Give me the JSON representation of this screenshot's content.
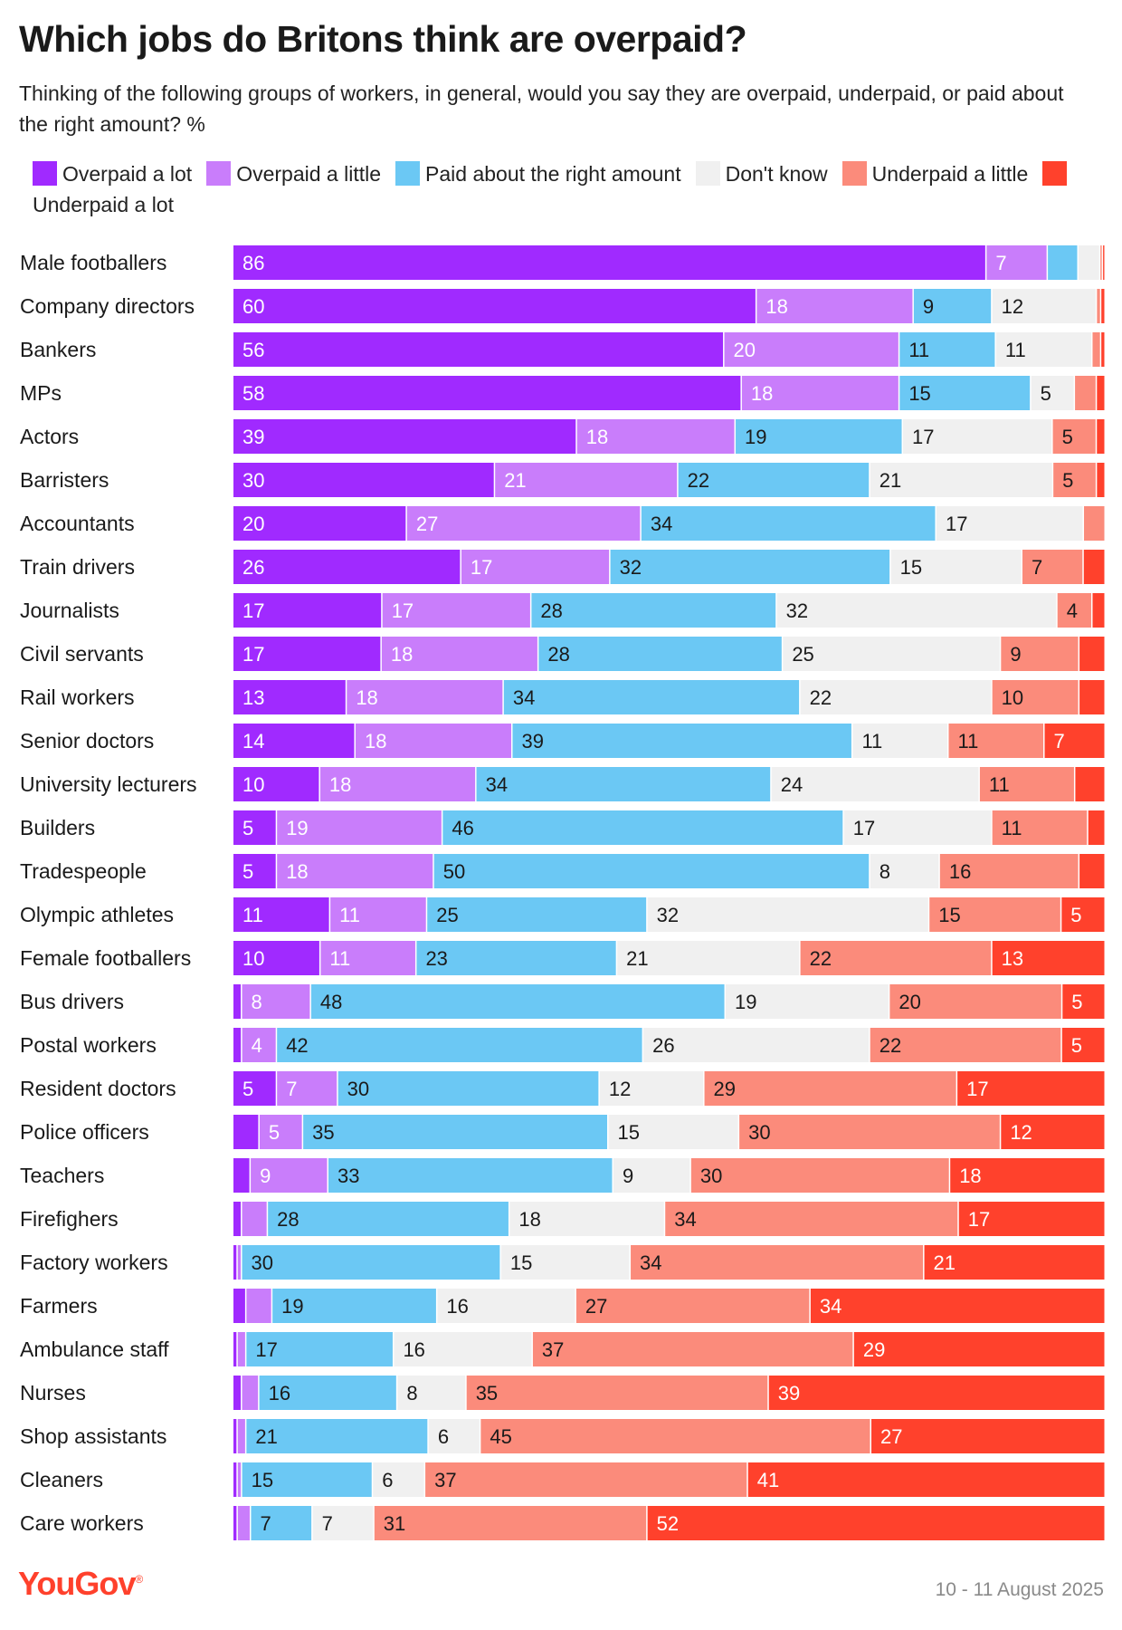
{
  "header": {
    "title": "Which jobs do Britons think are overpaid?",
    "subtitle": "Thinking of the following groups of workers, in general, would you say they are overpaid, underpaid, or paid about the right amount? %"
  },
  "footer": {
    "brand": "YouGov",
    "date": "10 - 11 August 2025"
  },
  "colors": {
    "overpaid_a_lot": "#a02aff",
    "overpaid_a_little": "#c97dfb",
    "right_amount": "#6bc8f4",
    "dont_know": "#f0f0f0",
    "underpaid_a_little": "#fb8b7b",
    "underpaid_a_lot": "#ff412c"
  },
  "chart_data": {
    "type": "bar",
    "orientation": "horizontal",
    "stacked": true,
    "title": "Which jobs do Britons think are overpaid?",
    "subtitle": "Thinking of the following groups of workers, in general, would you say they are overpaid, underpaid, or paid about the right amount? %",
    "xlim": [
      0,
      100
    ],
    "grid": false,
    "legend_position": "top",
    "categories": [
      "Male footballers",
      "Company directors",
      "Bankers",
      "MPs",
      "Actors",
      "Barristers",
      "Accountants",
      "Train drivers",
      "Journalists",
      "Civil servants",
      "Rail workers",
      "Senior doctors",
      "University lecturers",
      "Builders",
      "Tradespeople",
      "Olympic athletes",
      "Female footballers",
      "Bus drivers",
      "Postal workers",
      "Resident doctors",
      "Police officers",
      "Teachers",
      "Firefighers",
      "Factory workers",
      "Farmers",
      "Ambulance staff",
      "Nurses",
      "Shop assistants",
      "Cleaners",
      "Care workers"
    ],
    "series": [
      {
        "name": "Overpaid a lot",
        "color": "#a02aff",
        "text_color": "#ffffff",
        "values": [
          86,
          60,
          56,
          58,
          39,
          30,
          20,
          26,
          17,
          17,
          13,
          14,
          10,
          5,
          5,
          11,
          10,
          1,
          1,
          5,
          3,
          2,
          1,
          0.5,
          1.5,
          0.5,
          1,
          0.5,
          0.5,
          0.5
        ]
      },
      {
        "name": "Overpaid a little",
        "color": "#c97dfb",
        "text_color": "#ffffff",
        "values": [
          7,
          18,
          20,
          18,
          18,
          21,
          27,
          17,
          17,
          18,
          18,
          18,
          18,
          19,
          18,
          11,
          11,
          8,
          4,
          7,
          5,
          9,
          3,
          0.5,
          3,
          1,
          2,
          1,
          0.5,
          1.5
        ]
      },
      {
        "name": "Paid about the right amount",
        "color": "#6bc8f4",
        "text_color": "#1a1a1a",
        "values": [
          3.5,
          9,
          11,
          15,
          19,
          22,
          34,
          32,
          28,
          28,
          34,
          39,
          34,
          46,
          50,
          25,
          23,
          48,
          42,
          30,
          35,
          33,
          28,
          30,
          19,
          17,
          16,
          21,
          15,
          7
        ]
      },
      {
        "name": "Don't know",
        "color": "#f0f0f0",
        "text_color": "#1a1a1a",
        "values": [
          2.5,
          12,
          11,
          5,
          17,
          21,
          17,
          15,
          32,
          25,
          22,
          11,
          24,
          17,
          8,
          32,
          21,
          19,
          26,
          12,
          15,
          9,
          18,
          15,
          16,
          16,
          8,
          6,
          6,
          7
        ]
      },
      {
        "name": "Underpaid a little",
        "color": "#fb8b7b",
        "text_color": "#1a1a1a",
        "values": [
          0.3,
          0.5,
          1,
          2.5,
          5,
          5,
          2.5,
          7,
          4,
          9,
          10,
          11,
          11,
          11,
          16,
          15,
          22,
          20,
          22,
          29,
          30,
          30,
          34,
          34,
          27,
          37,
          35,
          45,
          37,
          31
        ]
      },
      {
        "name": "Underpaid a lot",
        "color": "#ff412c",
        "text_color": "#ffffff",
        "values": [
          0.3,
          0.5,
          0.5,
          1,
          1,
          1,
          0,
          2.5,
          1.5,
          3,
          3,
          7,
          3.5,
          2,
          3,
          5,
          13,
          5,
          5,
          17,
          12,
          18,
          17,
          21,
          34,
          29,
          39,
          27,
          41,
          52
        ]
      }
    ]
  }
}
